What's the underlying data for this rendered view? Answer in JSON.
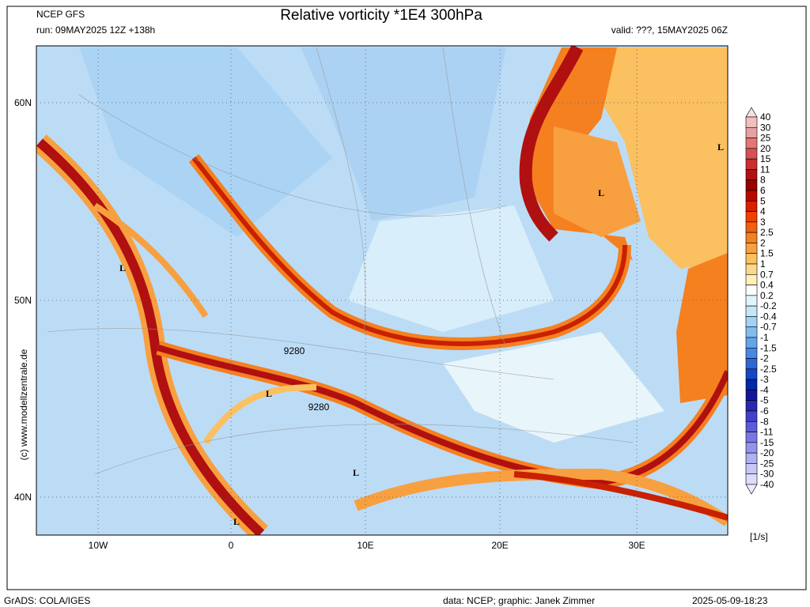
{
  "header": {
    "source": "NCEP GFS",
    "run": "run: 09MAY2025 12Z +138h",
    "title": "Relative vorticity *1E4 300hPa",
    "valid": "valid: ???, 15MAY2025 06Z"
  },
  "map": {
    "lon_labels": [
      "10W",
      "0",
      "10E",
      "20E",
      "30E"
    ],
    "lat_labels": [
      "60N",
      "50N",
      "40N"
    ],
    "pressure_labels": [
      "L",
      "L",
      "L",
      "L",
      "L",
      "L"
    ],
    "contour_labels": [
      "9280",
      "9280"
    ],
    "copyright": "(c) www.modellzentrale.de"
  },
  "colorbar": {
    "labels": [
      "40",
      "30",
      "25",
      "20",
      "15",
      "11",
      "8",
      "6",
      "5",
      "4",
      "3",
      "2.5",
      "2",
      "1.5",
      "1",
      "0.7",
      "0.4",
      "0.2",
      "-0.2",
      "-0.4",
      "-0.7",
      "-1",
      "-1.5",
      "-2",
      "-2.5",
      "-3",
      "-4",
      "-5",
      "-6",
      "-8",
      "-11",
      "-15",
      "-20",
      "-25",
      "-30",
      "-40"
    ],
    "colors": [
      "#f8e0e0",
      "#f0c0c0",
      "#e8a0a0",
      "#e07878",
      "#d85050",
      "#c83030",
      "#b01010",
      "#980000",
      "#b80800",
      "#d82000",
      "#f04000",
      "#f06010",
      "#f58020",
      "#f8a040",
      "#fbc060",
      "#fdd888",
      "#fff0b8",
      "#ffffff",
      "#e0f4fc",
      "#c4e6f8",
      "#a4d2f4",
      "#84bcf0",
      "#64a4e8",
      "#4888e0",
      "#2c68d4",
      "#1448c4",
      "#0028a8",
      "#101898",
      "#2828b0",
      "#4040c8",
      "#5c5cd8",
      "#7878e4",
      "#9494ec",
      "#b0b0f2",
      "#c8c8f8",
      "#dcdcfc",
      "#ececfe"
    ],
    "unit": "[1/s]"
  },
  "footer": {
    "software": "GrADS: COLA/IGES",
    "credit": "data: NCEP; graphic: Janek Zimmer",
    "timestamp": "2025-05-09-18:23"
  }
}
